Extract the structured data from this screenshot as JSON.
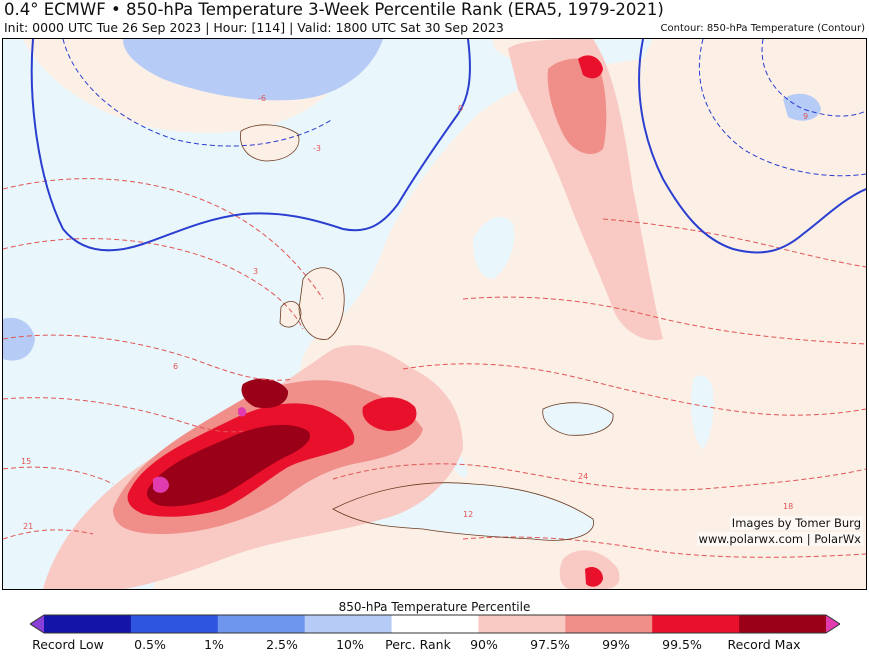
{
  "header": {
    "title": "0.4° ECMWF • 850-hPa Temperature 3-Week Percentile Rank (ERA5, 1979-2021)",
    "subtitle": "Init: 0000 UTC Tue 26 Sep 2023 | Hour: [114] | Valid: 1800 UTC Sat 30 Sep 2023",
    "contour_note": "Contour: 850-hPa Temperature (Contour)"
  },
  "credits": {
    "line1": "Images by Tomer Burg",
    "line2": "www.polarwx.com | PolarWx"
  },
  "colorbar": {
    "title": "850-hPa Temperature Percentile",
    "labels": [
      "Record Low",
      "0.5%",
      "1%",
      "2.5%",
      "10%",
      "Perc. Rank",
      "90%",
      "97.5%",
      "99%",
      "99.5%",
      "Record Max"
    ],
    "colors": [
      "#8a3fd6",
      "#1414a8",
      "#2e55e0",
      "#6f96ee",
      "#b6cbf6",
      "#ffffff",
      "#f9c9c3",
      "#f08e8a",
      "#e8102a",
      "#9a0018",
      "#e03cb0"
    ]
  },
  "map": {
    "contour_labels": [
      "-6",
      "-3",
      "0",
      "3",
      "6",
      "9",
      "12",
      "15",
      "18",
      "21",
      "24"
    ],
    "colors": {
      "ocean": "#e9f6fb",
      "land": "#fbefe6",
      "warm_light": "#f9c9c3",
      "warm_mid": "#f08e8a",
      "warm_strong": "#e8102a",
      "warm_extreme": "#9a0018",
      "record_max": "#e03cb0",
      "cold_light": "#b6cbf6",
      "contour_warm": "#e05555",
      "contour_cold": "#2a3ed0"
    }
  }
}
